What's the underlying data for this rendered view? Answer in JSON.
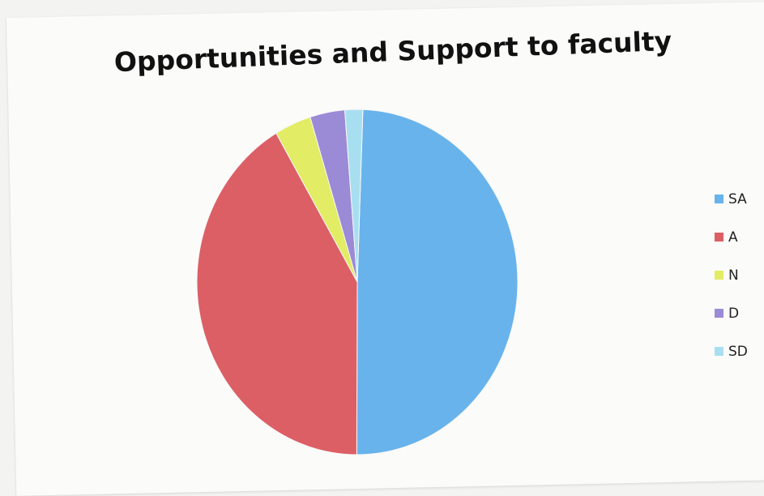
{
  "chart_data": {
    "type": "pie",
    "title": "Opportunities and Support to faculty",
    "categories": [
      "SA",
      "A",
      "N",
      "D",
      "SD"
    ],
    "values": [
      49.5,
      41.5,
      3.7,
      3.5,
      1.8
    ],
    "colors": [
      "#68b3ec",
      "#dc5f66",
      "#e2ec64",
      "#9b8ad6",
      "#a8dff0"
    ],
    "legend_position": "right"
  }
}
